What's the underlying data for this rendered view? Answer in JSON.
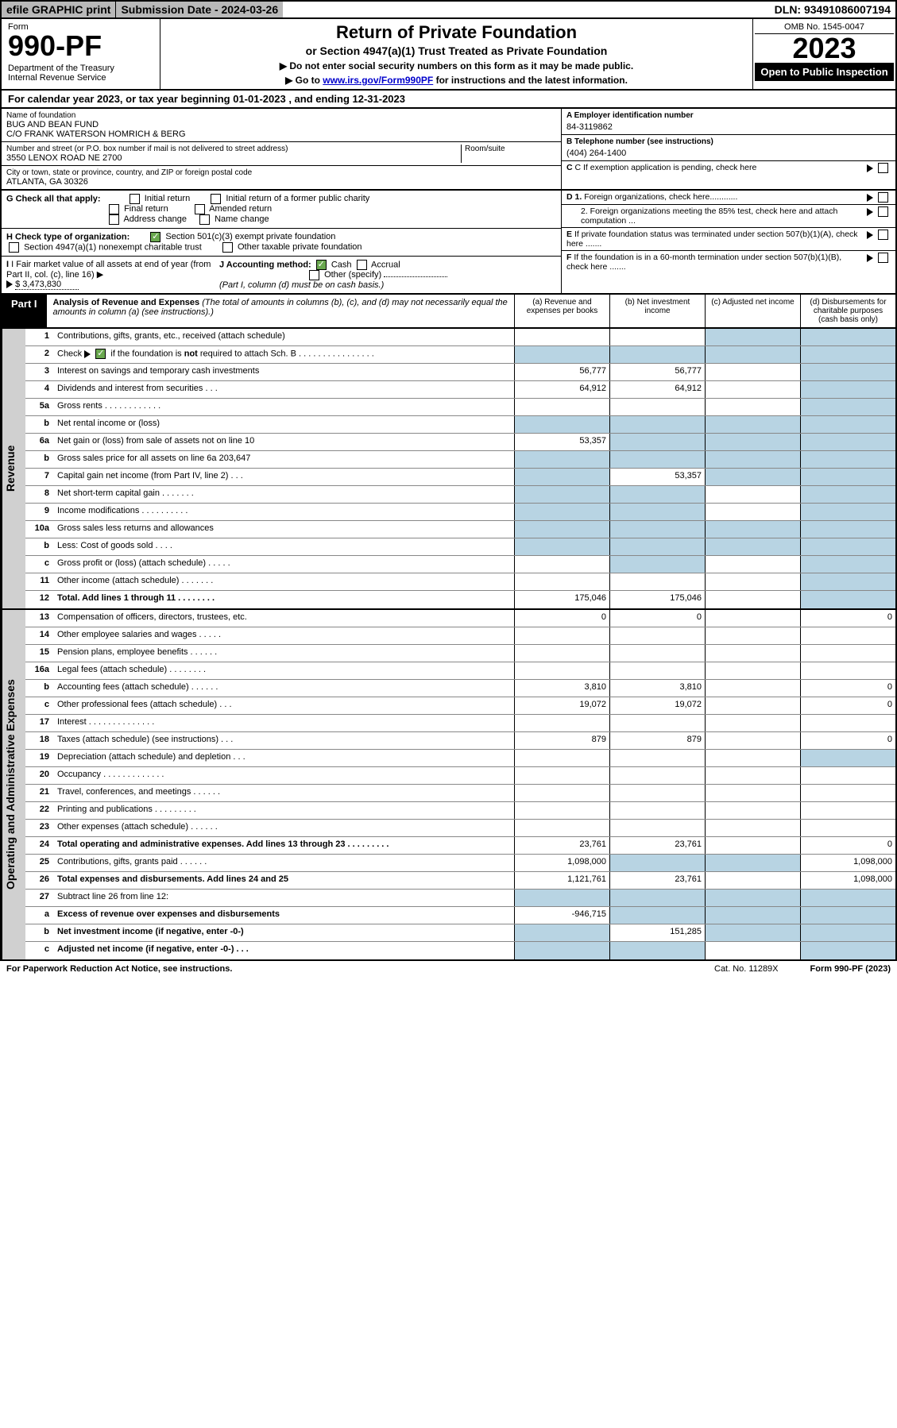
{
  "topbar": {
    "efile": "efile GRAPHIC print",
    "sub_date_label": "Submission Date - 2024-03-26",
    "dln": "DLN: 93491086007194"
  },
  "header": {
    "form_label": "Form",
    "form_num": "990-PF",
    "dept": "Department of the Treasury\nInternal Revenue Service",
    "title": "Return of Private Foundation",
    "subtitle": "or Section 4947(a)(1) Trust Treated as Private Foundation",
    "inst1": "▶ Do not enter social security numbers on this form as it may be made public.",
    "inst2_pre": "▶ Go to ",
    "inst2_link": "www.irs.gov/Form990PF",
    "inst2_post": " for instructions and the latest information.",
    "omb": "OMB No. 1545-0047",
    "year": "2023",
    "open": "Open to Public Inspection"
  },
  "cal_year": "For calendar year 2023, or tax year beginning 01-01-2023                   , and ending 12-31-2023",
  "info": {
    "name_label": "Name of foundation",
    "name1": "BUG AND BEAN FUND",
    "name2": "C/O FRANK WATERSON HOMRICH & BERG",
    "addr_label": "Number and street (or P.O. box number if mail is not delivered to street address)",
    "addr": "3550 LENOX ROAD NE 2700",
    "room_label": "Room/suite",
    "city_label": "City or town, state or province, country, and ZIP or foreign postal code",
    "city": "ATLANTA, GA  30326",
    "a_label": "A Employer identification number",
    "a_val": "84-3119862",
    "b_label": "B Telephone number (see instructions)",
    "b_val": "(404) 264-1400",
    "c_label": "C If exemption application is pending, check here",
    "d1": "D 1. Foreign organizations, check here............",
    "d2": "2. Foreign organizations meeting the 85% test, check here and attach computation ...",
    "e": "E  If private foundation status was terminated under section 507(b)(1)(A), check here .......",
    "f": "F  If the foundation is in a 60-month termination under section 507(b)(1)(B), check here .......",
    "g_label": "G Check all that apply:",
    "g_opts": [
      "Initial return",
      "Initial return of a former public charity",
      "Final return",
      "Amended return",
      "Address change",
      "Name change"
    ],
    "h_label": "H Check type of organization:",
    "h1": "Section 501(c)(3) exempt private foundation",
    "h2": "Section 4947(a)(1) nonexempt charitable trust",
    "h3": "Other taxable private foundation",
    "i_label": "I Fair market value of all assets at end of year (from Part II, col. (c), line 16) ▶",
    "i_val": "$ 3,473,830",
    "j_label": "J Accounting method:",
    "j_cash": "Cash",
    "j_accrual": "Accrual",
    "j_other": "Other (specify)",
    "j_note": "(Part I, column (d) must be on cash basis.)"
  },
  "part1": {
    "label": "Part I",
    "title": "Analysis of Revenue and Expenses",
    "note": " (The total of amounts in columns (b), (c), and (d) may not necessarily equal the amounts in column (a) (see instructions).)",
    "col_a": "(a)   Revenue and expenses per books",
    "col_b": "(b)   Net investment income",
    "col_c": "(c)   Adjusted net income",
    "col_d": "(d)   Disbursements for charitable purposes (cash basis only)"
  },
  "tabs": {
    "revenue": "Revenue",
    "expenses": "Operating and Administrative Expenses"
  },
  "rows": [
    {
      "n": "1",
      "d": "Contributions, gifts, grants, etc., received (attach schedule)",
      "a": "",
      "b": "",
      "c": "s",
      "dd": "s"
    },
    {
      "n": "2",
      "d": "Check ▶ ☑ if the foundation is not required to attach Sch. B    .   .   .   .   .   .   .   .   .   .   .   .   .   .   .   .",
      "a": "s",
      "b": "s",
      "c": "s",
      "dd": "s"
    },
    {
      "n": "3",
      "d": "Interest on savings and temporary cash investments",
      "a": "56,777",
      "b": "56,777",
      "c": "",
      "dd": "s"
    },
    {
      "n": "4",
      "d": "Dividends and interest from securities    .   .   .",
      "a": "64,912",
      "b": "64,912",
      "c": "",
      "dd": "s"
    },
    {
      "n": "5a",
      "d": "Gross rents    .   .   .   .   .   .   .   .   .   .   .   .",
      "a": "",
      "b": "",
      "c": "",
      "dd": "s"
    },
    {
      "n": "b",
      "d": "Net rental income or (loss)",
      "a": "s",
      "b": "s",
      "c": "s",
      "dd": "s"
    },
    {
      "n": "6a",
      "d": "Net gain or (loss) from sale of assets not on line 10",
      "a": "53,357",
      "b": "s",
      "c": "s",
      "dd": "s"
    },
    {
      "n": "b",
      "d": "Gross sales price for all assets on line 6a            203,647",
      "a": "s",
      "b": "s",
      "c": "s",
      "dd": "s"
    },
    {
      "n": "7",
      "d": "Capital gain net income (from Part IV, line 2)    .   .   .",
      "a": "s",
      "b": "53,357",
      "c": "s",
      "dd": "s"
    },
    {
      "n": "8",
      "d": "Net short-term capital gain   .   .   .   .   .   .   .",
      "a": "s",
      "b": "s",
      "c": "",
      "dd": "s"
    },
    {
      "n": "9",
      "d": "Income modifications  .   .   .   .   .   .   .   .   .   .",
      "a": "s",
      "b": "s",
      "c": "",
      "dd": "s"
    },
    {
      "n": "10a",
      "d": "Gross sales less returns and allowances",
      "a": "s",
      "b": "s",
      "c": "s",
      "dd": "s"
    },
    {
      "n": "b",
      "d": "Less: Cost of goods sold     .    .    .    .",
      "a": "s",
      "b": "s",
      "c": "s",
      "dd": "s"
    },
    {
      "n": "c",
      "d": "Gross profit or (loss) (attach schedule)    .   .   .   .   .",
      "a": "",
      "b": "s",
      "c": "",
      "dd": "s"
    },
    {
      "n": "11",
      "d": "Other income (attach schedule)    .   .   .   .   .   .   .",
      "a": "",
      "b": "",
      "c": "",
      "dd": "s"
    },
    {
      "n": "12",
      "d": "Total. Add lines 1 through 11   .   .   .   .   .   .   .   .",
      "bold": true,
      "a": "175,046",
      "b": "175,046",
      "c": "",
      "dd": "s"
    }
  ],
  "exp_rows": [
    {
      "n": "13",
      "d": "Compensation of officers, directors, trustees, etc.",
      "a": "0",
      "b": "0",
      "c": "",
      "dd": "0"
    },
    {
      "n": "14",
      "d": "Other employee salaries and wages    .   .   .   .   .",
      "a": "",
      "b": "",
      "c": "",
      "dd": ""
    },
    {
      "n": "15",
      "d": "Pension plans, employee benefits  .   .   .   .   .   .",
      "a": "",
      "b": "",
      "c": "",
      "dd": ""
    },
    {
      "n": "16a",
      "d": "Legal fees (attach schedule)  .   .   .   .   .   .   .   .",
      "a": "",
      "b": "",
      "c": "",
      "dd": ""
    },
    {
      "n": "b",
      "d": "Accounting fees (attach schedule)  .   .   .   .   .   .",
      "a": "3,810",
      "b": "3,810",
      "c": "",
      "dd": "0"
    },
    {
      "n": "c",
      "d": "Other professional fees (attach schedule)     .   .   .",
      "a": "19,072",
      "b": "19,072",
      "c": "",
      "dd": "0"
    },
    {
      "n": "17",
      "d": "Interest  .   .   .   .   .   .   .   .   .   .   .   .   .   .",
      "a": "",
      "b": "",
      "c": "",
      "dd": ""
    },
    {
      "n": "18",
      "d": "Taxes (attach schedule) (see instructions)     .   .   .",
      "a": "879",
      "b": "879",
      "c": "",
      "dd": "0"
    },
    {
      "n": "19",
      "d": "Depreciation (attach schedule) and depletion    .   .   .",
      "a": "",
      "b": "",
      "c": "",
      "dd": "s"
    },
    {
      "n": "20",
      "d": "Occupancy  .   .   .   .   .   .   .   .   .   .   .   .   .",
      "a": "",
      "b": "",
      "c": "",
      "dd": ""
    },
    {
      "n": "21",
      "d": "Travel, conferences, and meetings  .   .   .   .   .   .",
      "a": "",
      "b": "",
      "c": "",
      "dd": ""
    },
    {
      "n": "22",
      "d": "Printing and publications  .   .   .   .   .   .   .   .   .",
      "a": "",
      "b": "",
      "c": "",
      "dd": ""
    },
    {
      "n": "23",
      "d": "Other expenses (attach schedule)  .   .   .   .   .   .",
      "a": "",
      "b": "",
      "c": "",
      "dd": ""
    },
    {
      "n": "24",
      "d": "Total operating and administrative expenses. Add lines 13 through 23   .   .   .   .   .   .   .   .   .",
      "bold": true,
      "a": "23,761",
      "b": "23,761",
      "c": "",
      "dd": "0"
    },
    {
      "n": "25",
      "d": "Contributions, gifts, grants paid     .   .   .   .   .   .",
      "a": "1,098,000",
      "b": "s",
      "c": "s",
      "dd": "1,098,000"
    },
    {
      "n": "26",
      "d": "Total expenses and disbursements. Add lines 24 and 25",
      "bold": true,
      "a": "1,121,761",
      "b": "23,761",
      "c": "",
      "dd": "1,098,000"
    },
    {
      "n": "27",
      "d": "Subtract line 26 from line 12:",
      "a": "s",
      "b": "s",
      "c": "s",
      "dd": "s"
    },
    {
      "n": "a",
      "d": "Excess of revenue over expenses and disbursements",
      "bold": true,
      "a": "-946,715",
      "b": "s",
      "c": "s",
      "dd": "s"
    },
    {
      "n": "b",
      "d": "Net investment income (if negative, enter -0-)",
      "bold": true,
      "a": "s",
      "b": "151,285",
      "c": "s",
      "dd": "s"
    },
    {
      "n": "c",
      "d": "Adjusted net income (if negative, enter -0-)    .   .   .",
      "bold": true,
      "a": "s",
      "b": "s",
      "c": "",
      "dd": "s"
    }
  ],
  "footer": {
    "pra": "For Paperwork Reduction Act Notice, see instructions.",
    "cat": "Cat. No. 11289X",
    "form": "Form 990-PF (2023)"
  }
}
